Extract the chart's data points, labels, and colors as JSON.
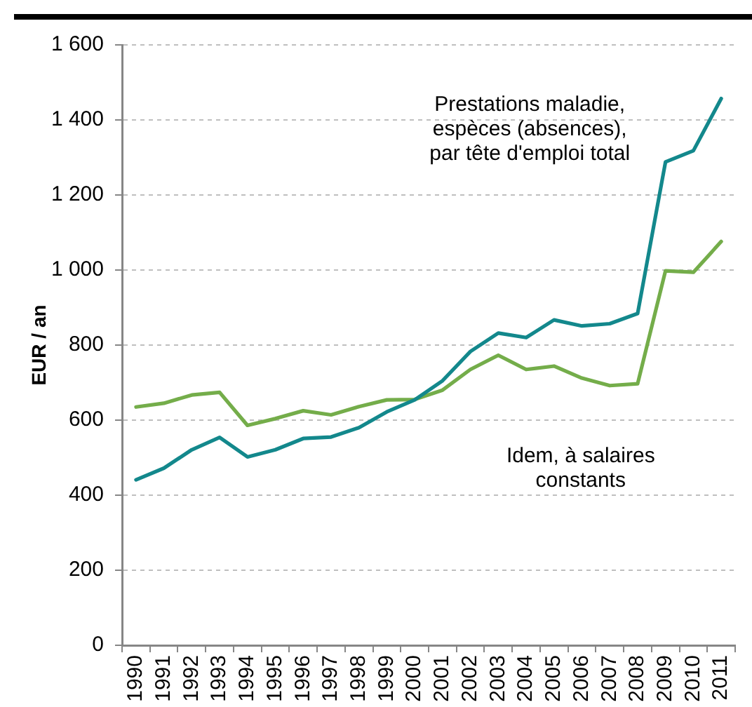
{
  "chart_data": {
    "type": "line",
    "ylabel": "EUR / an",
    "categories": [
      "1990",
      "1991",
      "1992",
      "1993",
      "1994",
      "1995",
      "1996",
      "1997",
      "1998",
      "1999",
      "2000",
      "2001",
      "2002",
      "2003",
      "2004",
      "2005",
      "2006",
      "2007",
      "2008",
      "2009",
      "2010",
      "2011"
    ],
    "series": [
      {
        "name": "Prestations maladie, espèces (absences), par tête d'emploi total",
        "color": "#13888c",
        "values": [
          441,
          472,
          521,
          554,
          502,
          521,
          551,
          555,
          580,
          622,
          654,
          705,
          783,
          832,
          820,
          867,
          851,
          857,
          884,
          1288,
          1318,
          1457
        ]
      },
      {
        "name": "Idem, à salaires constants",
        "color": "#74ad4a",
        "values": [
          635,
          645,
          667,
          674,
          586,
          604,
          625,
          614,
          636,
          654,
          655,
          680,
          735,
          773,
          735,
          744,
          712,
          692,
          697,
          998,
          994,
          1076
        ]
      }
    ],
    "ylim": [
      0,
      1600
    ],
    "yticks": [
      0,
      200,
      400,
      600,
      800,
      {
        "value": 1000,
        "label": "1 000"
      },
      {
        "value": 1200,
        "label": "1 200"
      },
      {
        "value": 1400,
        "label": "1 400"
      },
      {
        "value": 1600,
        "label": "1 600"
      }
    ],
    "grid": "y",
    "legend": false,
    "marker": "none",
    "line_style": "solid"
  }
}
